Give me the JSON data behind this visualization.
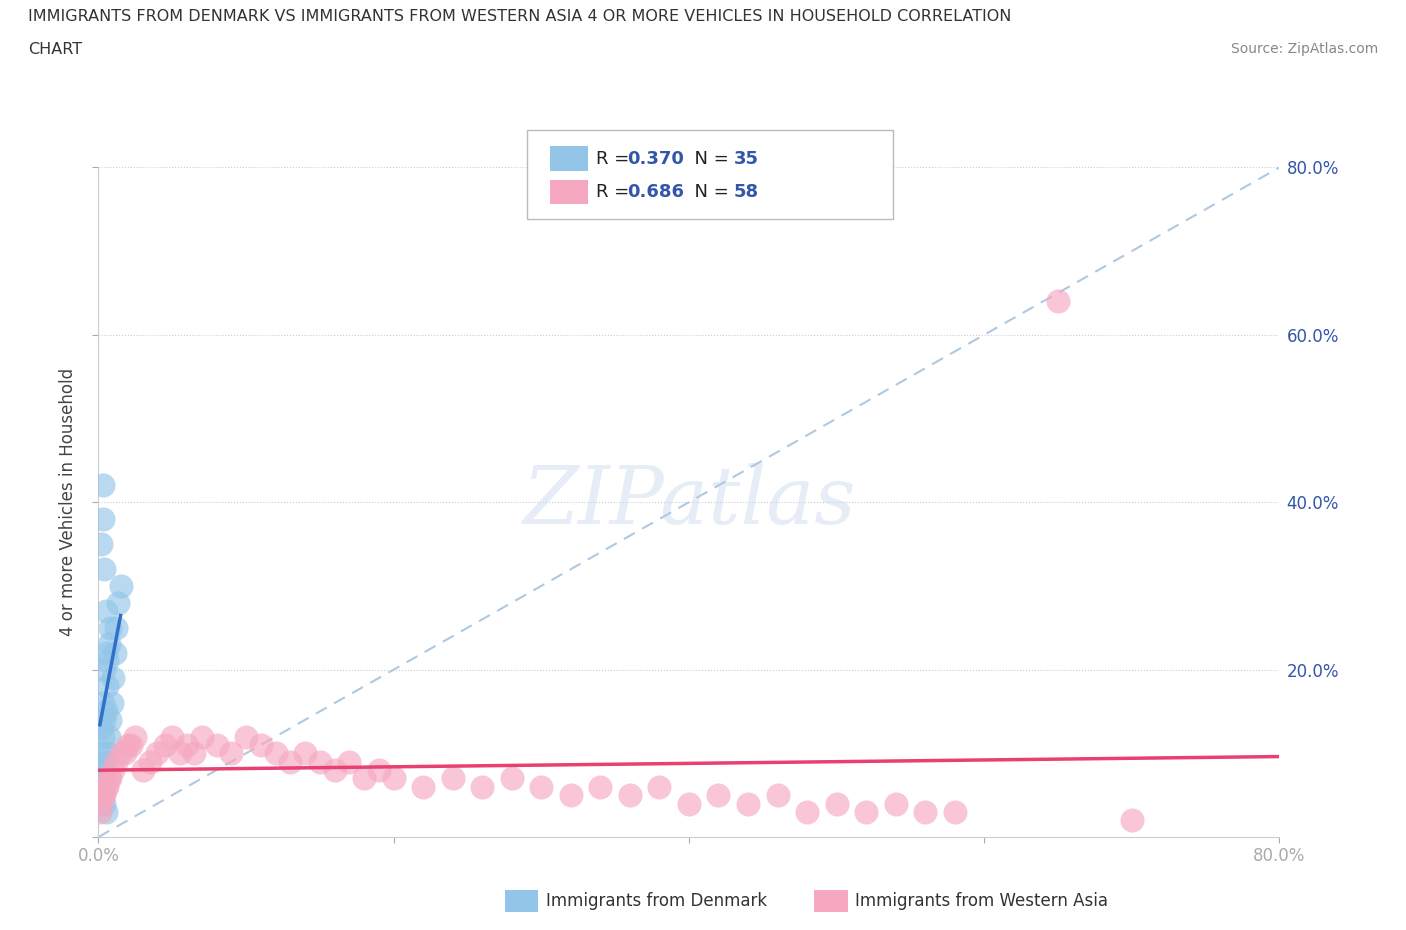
{
  "title_line1": "IMMIGRANTS FROM DENMARK VS IMMIGRANTS FROM WESTERN ASIA 4 OR MORE VEHICLES IN HOUSEHOLD CORRELATION",
  "title_line2": "CHART",
  "source_text": "Source: ZipAtlas.com",
  "ylabel": "4 or more Vehicles in Household",
  "xlim": [
    0.0,
    0.8
  ],
  "ylim": [
    0.0,
    0.8
  ],
  "denmark_R": 0.37,
  "denmark_N": 35,
  "western_asia_R": 0.686,
  "western_asia_N": 58,
  "denmark_color": "#92C5E8",
  "western_asia_color": "#F5A8C0",
  "denmark_line_color": "#3070C8",
  "western_asia_line_color": "#E84070",
  "diagonal_color": "#B0C8E0",
  "background_color": "#FFFFFF",
  "denmark_x": [
    0.001,
    0.001,
    0.002,
    0.002,
    0.002,
    0.003,
    0.003,
    0.003,
    0.004,
    0.004,
    0.004,
    0.005,
    0.005,
    0.005,
    0.006,
    0.006,
    0.007,
    0.007,
    0.008,
    0.008,
    0.009,
    0.01,
    0.011,
    0.012,
    0.013,
    0.015,
    0.002,
    0.003,
    0.004,
    0.005,
    0.006,
    0.003,
    0.004,
    0.005,
    0.003
  ],
  "denmark_y": [
    0.05,
    0.08,
    0.06,
    0.1,
    0.13,
    0.07,
    0.12,
    0.16,
    0.08,
    0.14,
    0.2,
    0.09,
    0.15,
    0.22,
    0.1,
    0.18,
    0.12,
    0.23,
    0.14,
    0.25,
    0.16,
    0.19,
    0.22,
    0.25,
    0.28,
    0.3,
    0.35,
    0.38,
    0.32,
    0.27,
    0.21,
    0.42,
    0.04,
    0.03,
    0.06
  ],
  "western_asia_x": [
    0.001,
    0.002,
    0.003,
    0.004,
    0.005,
    0.006,
    0.007,
    0.008,
    0.01,
    0.012,
    0.015,
    0.018,
    0.02,
    0.022,
    0.025,
    0.03,
    0.035,
    0.04,
    0.045,
    0.05,
    0.055,
    0.06,
    0.065,
    0.07,
    0.08,
    0.09,
    0.1,
    0.11,
    0.12,
    0.13,
    0.14,
    0.15,
    0.16,
    0.17,
    0.18,
    0.19,
    0.2,
    0.22,
    0.24,
    0.26,
    0.28,
    0.3,
    0.32,
    0.34,
    0.36,
    0.38,
    0.4,
    0.42,
    0.44,
    0.46,
    0.48,
    0.5,
    0.52,
    0.54,
    0.56,
    0.58,
    0.65,
    0.7
  ],
  "western_asia_y": [
    0.03,
    0.04,
    0.05,
    0.05,
    0.06,
    0.06,
    0.07,
    0.07,
    0.08,
    0.09,
    0.1,
    0.1,
    0.11,
    0.11,
    0.12,
    0.08,
    0.09,
    0.1,
    0.11,
    0.12,
    0.1,
    0.11,
    0.1,
    0.12,
    0.11,
    0.1,
    0.12,
    0.11,
    0.1,
    0.09,
    0.1,
    0.09,
    0.08,
    0.09,
    0.07,
    0.08,
    0.07,
    0.06,
    0.07,
    0.06,
    0.07,
    0.06,
    0.05,
    0.06,
    0.05,
    0.06,
    0.04,
    0.05,
    0.04,
    0.05,
    0.03,
    0.04,
    0.03,
    0.04,
    0.03,
    0.03,
    0.64,
    0.02
  ]
}
